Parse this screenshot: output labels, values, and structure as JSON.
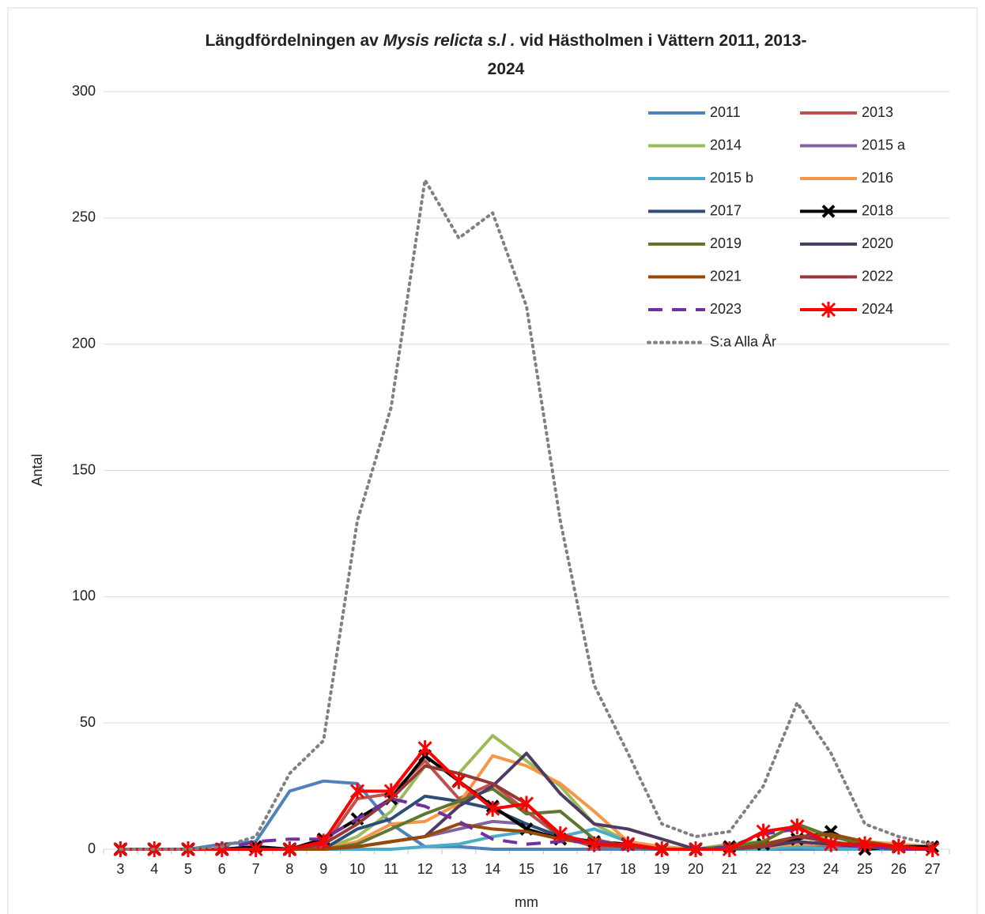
{
  "chart_data": {
    "type": "line",
    "title": [
      "Längdfördelningen av ",
      "Mysis  relicta s.l .",
      " vid Hästholmen i Vättern 2011, 2013-",
      "2024"
    ],
    "xlabel": "mm",
    "ylabel": "Antal",
    "categories": [
      "3",
      "4",
      "5",
      "6",
      "7",
      "8",
      "9",
      "10",
      "11",
      "12",
      "13",
      "14",
      "15",
      "16",
      "17",
      "18",
      "19",
      "20",
      "21",
      "22",
      "23",
      "24",
      "25",
      "26",
      "27"
    ],
    "ylim": [
      0,
      300
    ],
    "yticks": [
      0,
      50,
      100,
      150,
      200,
      250,
      300
    ],
    "grid": true,
    "series": [
      {
        "name": "2011",
        "color": "#4f81bd",
        "values": [
          0,
          0,
          0,
          2,
          3,
          23,
          27,
          26,
          10,
          1,
          1,
          0,
          0,
          0,
          0,
          0,
          0,
          0,
          0,
          0,
          0,
          0,
          0,
          0,
          0
        ]
      },
      {
        "name": "2013",
        "color": "#c0504d",
        "values": [
          0,
          0,
          0,
          0,
          0,
          0,
          1,
          20,
          22,
          35,
          20,
          26,
          15,
          5,
          1,
          1,
          0,
          0,
          0,
          0,
          2,
          3,
          1,
          0,
          0
        ]
      },
      {
        "name": "2014",
        "color": "#9bbb59",
        "values": [
          0,
          0,
          0,
          0,
          0,
          0,
          0,
          5,
          15,
          33,
          30,
          45,
          35,
          25,
          10,
          3,
          0,
          0,
          2,
          3,
          10,
          3,
          1,
          0,
          0
        ]
      },
      {
        "name": "2015 a",
        "color": "#8064a2",
        "values": [
          0,
          0,
          0,
          0,
          0,
          0,
          0,
          1,
          3,
          5,
          8,
          11,
          10,
          5,
          2,
          1,
          0,
          0,
          0,
          1,
          1,
          1,
          0,
          0,
          0
        ]
      },
      {
        "name": "2015 b",
        "color": "#4bacc6",
        "values": [
          0,
          0,
          0,
          0,
          0,
          0,
          0,
          0,
          0,
          1,
          2,
          5,
          7,
          5,
          8,
          3,
          0,
          0,
          0,
          0,
          1,
          0,
          0,
          0,
          0
        ]
      },
      {
        "name": "2016",
        "color": "#f79646",
        "values": [
          0,
          0,
          0,
          0,
          0,
          0,
          0,
          3,
          10,
          11,
          18,
          37,
          33,
          26,
          15,
          3,
          1,
          0,
          0,
          1,
          2,
          2,
          3,
          2,
          1
        ]
      },
      {
        "name": "2017",
        "color": "#2c4d75",
        "values": [
          0,
          0,
          0,
          0,
          0,
          0,
          0,
          8,
          12,
          21,
          19,
          16,
          10,
          5,
          3,
          2,
          0,
          0,
          0,
          1,
          3,
          2,
          1,
          0,
          0
        ]
      },
      {
        "name": "2018",
        "color": "#000000",
        "marker": "x",
        "values": [
          0,
          0,
          0,
          0,
          1,
          0,
          4,
          12,
          20,
          37,
          27,
          17,
          8,
          4,
          3,
          2,
          0,
          0,
          1,
          2,
          4,
          7,
          0,
          1,
          1
        ]
      },
      {
        "name": "2019",
        "color": "#5f7530",
        "values": [
          0,
          0,
          0,
          0,
          0,
          0,
          0,
          2,
          8,
          14,
          19,
          24,
          14,
          15,
          4,
          1,
          0,
          0,
          1,
          3,
          10,
          5,
          2,
          1,
          0
        ]
      },
      {
        "name": "2020",
        "color": "#4d3b62",
        "values": [
          0,
          0,
          0,
          0,
          0,
          0,
          0,
          1,
          3,
          5,
          17,
          25,
          38,
          22,
          10,
          8,
          4,
          0,
          0,
          1,
          3,
          2,
          1,
          0,
          0
        ]
      },
      {
        "name": "2021",
        "color": "#984807",
        "values": [
          0,
          0,
          0,
          0,
          0,
          0,
          0,
          1,
          3,
          5,
          10,
          8,
          7,
          4,
          2,
          1,
          0,
          0,
          0,
          2,
          5,
          6,
          3,
          1,
          0
        ]
      },
      {
        "name": "2022",
        "color": "#953735",
        "values": [
          0,
          0,
          0,
          0,
          0,
          0,
          2,
          10,
          20,
          33,
          30,
          26,
          18,
          5,
          2,
          1,
          0,
          0,
          0,
          1,
          5,
          3,
          1,
          0,
          0
        ]
      },
      {
        "name": "2023",
        "color": "#7030a0",
        "dash": "dashed",
        "values": [
          0,
          0,
          0,
          0,
          3,
          4,
          4,
          12,
          20,
          17,
          11,
          4,
          2,
          3,
          3,
          2,
          0,
          0,
          1,
          6,
          8,
          2,
          1,
          0,
          0
        ]
      },
      {
        "name": "2024",
        "color": "#ff0000",
        "marker": "star",
        "values": [
          0,
          0,
          0,
          0,
          0,
          0,
          3,
          23,
          23,
          40,
          27,
          16,
          18,
          6,
          2,
          2,
          0,
          0,
          0,
          7,
          9,
          2,
          2,
          1,
          0
        ]
      },
      {
        "name": "S:a Alla År",
        "color": "#808080",
        "dash": "dotted",
        "values": [
          0,
          0,
          0,
          1,
          5,
          30,
          43,
          130,
          175,
          265,
          242,
          252,
          215,
          130,
          65,
          38,
          10,
          5,
          7,
          25,
          58,
          38,
          10,
          5,
          2
        ]
      }
    ]
  }
}
